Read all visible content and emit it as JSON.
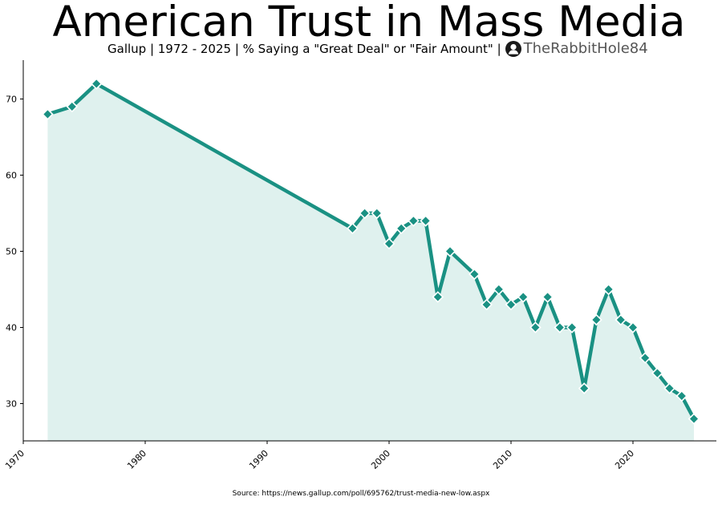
{
  "title": "American Trust in Mass Media",
  "subtitle": "Gallup | 1972 - 2025 | % Saying a \"Great Deal\" or \"Fair Amount\" |",
  "brand": {
    "name": "TheRabbitHole84",
    "icon": "person-silhouette-icon"
  },
  "source": "Source: https://news.gallup.com/poll/695762/trust-media-new-low.aspx",
  "colors": {
    "line": "#1a9183",
    "fill": "#dff1ee",
    "marker_edge": "#ffffff"
  },
  "chart_data": {
    "type": "area",
    "title": "American Trust in Mass Media",
    "subtitle": "Gallup | 1972 - 2025 | % Saying a \"Great Deal\" or \"Fair Amount\" |",
    "xlabel": "",
    "ylabel": "",
    "xlim": [
      1970,
      2027
    ],
    "ylim": [
      25,
      75
    ],
    "xticks": [
      1970,
      1980,
      1990,
      2000,
      2010,
      2020
    ],
    "yticks": [
      30,
      40,
      50,
      60,
      70
    ],
    "grid": false,
    "legend": "none",
    "marker": "diamond",
    "x": [
      1972,
      1974,
      1976,
      1997,
      1998,
      1999,
      2000,
      2001,
      2002,
      2003,
      2004,
      2005,
      2007,
      2008,
      2009,
      2010,
      2011,
      2012,
      2013,
      2014,
      2015,
      2016,
      2017,
      2018,
      2019,
      2020,
      2021,
      2022,
      2023,
      2024,
      2025
    ],
    "y": [
      68,
      69,
      72,
      53,
      55,
      55,
      51,
      53,
      54,
      54,
      44,
      50,
      47,
      43,
      45,
      43,
      44,
      40,
      44,
      40,
      40,
      32,
      41,
      45,
      41,
      40,
      36,
      34,
      32,
      31,
      28
    ]
  }
}
